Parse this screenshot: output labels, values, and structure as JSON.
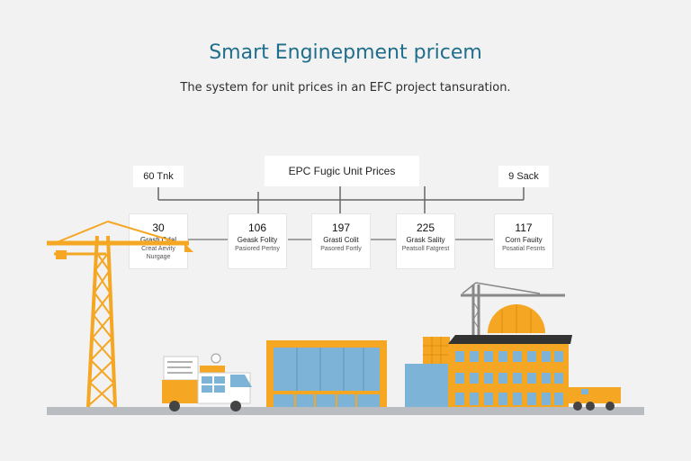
{
  "header": {
    "title": "Smart Enginepment pricem",
    "subtitle": "The system for unit prices in an EFC project tansuration."
  },
  "timeline": {
    "left_label": "60 Tnk",
    "center_label": "EPC Fugic Unit Prices",
    "right_label": "9 Sack",
    "nodes": [
      {
        "value": "30",
        "line1": "Grasti Cdal",
        "line2": "Creat Aevity Nurgage"
      },
      {
        "value": "106",
        "line1": "Geask Folity",
        "line2": "Pasiored Pertny"
      },
      {
        "value": "197",
        "line1": "Grasti Colit",
        "line2": "Pasored Fortly"
      },
      {
        "value": "225",
        "line1": "Grask Sality",
        "line2": "Peatsoll Fatgrest"
      },
      {
        "value": "117",
        "line1": "Corn Fauity",
        "line2": "Posatial Fesnts"
      }
    ]
  },
  "colors": {
    "accent_orange": "#f5a623",
    "teal_title": "#1f6e8c",
    "glass_blue": "#7db3d6",
    "ground_gray": "#b9bcc0"
  },
  "illustration": {
    "icons": [
      "tower-crane-icon",
      "delivery-truck-icon",
      "glass-warehouse-icon",
      "domed-factory-icon",
      "small-crane-icon",
      "dump-truck-icon"
    ]
  }
}
